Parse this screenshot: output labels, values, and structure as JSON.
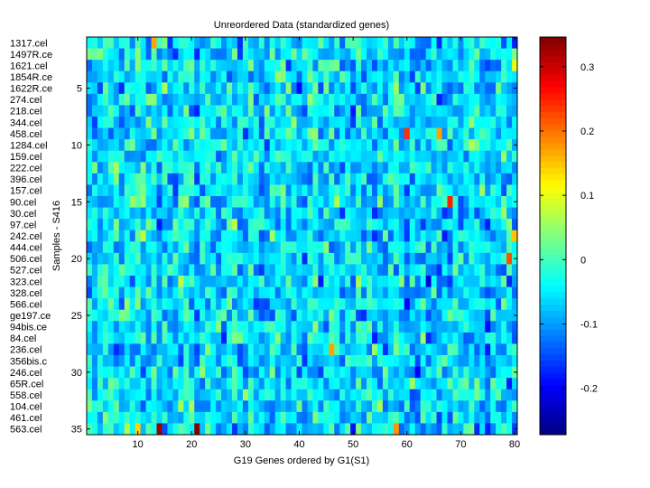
{
  "chart_data": {
    "type": "heatmap",
    "title": "Unreordered Data (standardized genes)",
    "xlabel": "G19 Genes ordered by G1(S1)",
    "ylabel": "Samples - S416",
    "n_rows": 35,
    "n_cols": 80,
    "xlim": [
      0.5,
      80.5
    ],
    "ylim": [
      0.5,
      35.5
    ],
    "x_ticks": [
      10,
      20,
      30,
      40,
      50,
      60,
      70,
      80
    ],
    "y_ticks": [
      5,
      10,
      15,
      20,
      25,
      30,
      35
    ],
    "row_labels": [
      "1317.cel",
      "1497R.ce",
      "1621.cel",
      "1854R.ce",
      "1622R.ce",
      "274.cel",
      "218.cel",
      "344.cel",
      "458.cel",
      "1284.cel",
      "159.cel",
      "222.cel",
      "396.cel",
      "157.cel",
      "90.cel",
      "30.cel",
      "97.cel",
      "242.cel",
      "444.cel",
      "506.cel",
      "527.cel",
      "323.cel",
      "328.cel",
      "566.cel",
      "ge197.ce",
      "94bis.ce",
      "84.cel",
      "236.cel",
      "356bis.c",
      "246.cel",
      "65R.cel",
      "558.cel",
      "104.cel",
      "461.cel",
      "563.cel"
    ],
    "colormap": "jet",
    "color_range": [
      -0.272,
      0.346
    ],
    "colorbar_ticks": [
      -0.2,
      -0.1,
      0,
      0.1,
      0.2,
      0.3
    ],
    "notable_cells": [
      {
        "row": 35,
        "col": 14,
        "value": 0.33
      },
      {
        "row": 35,
        "col": 21,
        "value": 0.34
      },
      {
        "row": 9,
        "col": 60,
        "value": 0.24
      },
      {
        "row": 15,
        "col": 68,
        "value": 0.25
      },
      {
        "row": 1,
        "col": 13,
        "value": 0.17
      },
      {
        "row": 9,
        "col": 66,
        "value": 0.17
      },
      {
        "row": 28,
        "col": 46,
        "value": 0.17
      },
      {
        "row": 20,
        "col": 79,
        "value": 0.22
      },
      {
        "row": 35,
        "col": 58,
        "value": 0.18
      },
      {
        "row": 35,
        "col": 10,
        "value": 0.14
      },
      {
        "row": 3,
        "col": 80,
        "value": 0.1
      },
      {
        "row": 18,
        "col": 80,
        "value": 0.15
      }
    ],
    "background_value_range": [
      -0.2,
      0.08
    ]
  }
}
